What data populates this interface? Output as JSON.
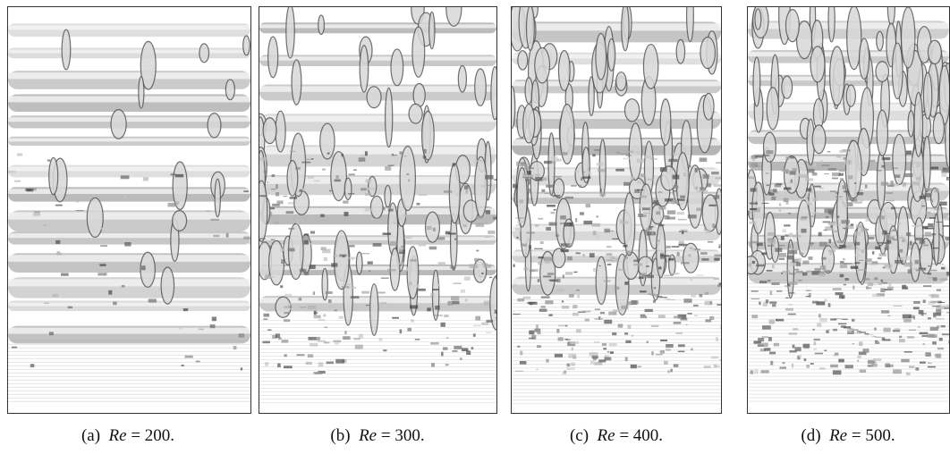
{
  "figure": {
    "panels": [
      {
        "label": "(a)",
        "variable": "Re",
        "value_text": "= 200."
      },
      {
        "label": "(b)",
        "variable": "Re",
        "value_text": "= 300."
      },
      {
        "label": "(c)",
        "variable": "Re",
        "value_text": "= 400."
      },
      {
        "label": "(d)",
        "variable": "Re",
        "value_text": "= 500."
      }
    ]
  }
}
